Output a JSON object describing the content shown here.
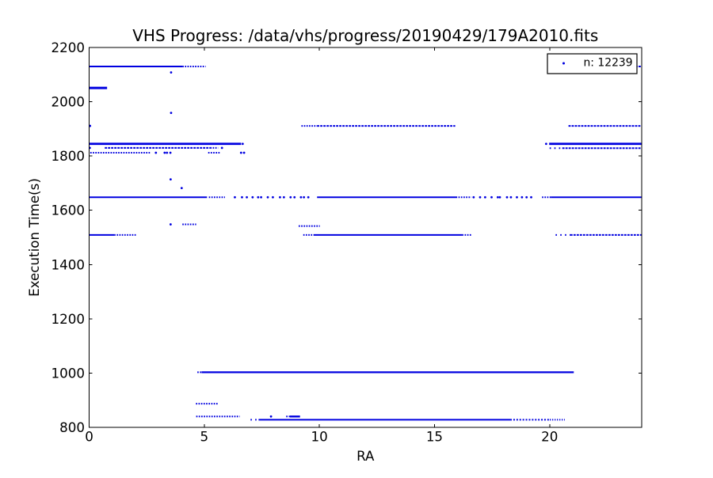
{
  "chart_data": {
    "type": "scatter",
    "title": "VHS Progress: /data/vhs/progress/20190429/179A2010.fits",
    "xlabel": "RA",
    "ylabel": "Execution Time(s)",
    "legend": {
      "label": "n: 12239",
      "position": "upper right"
    },
    "xlim": [
      0,
      24
    ],
    "ylim": [
      800,
      2200
    ],
    "xticks": [
      0,
      5,
      10,
      15,
      20
    ],
    "yticks": [
      800,
      1000,
      1200,
      1400,
      1600,
      1800,
      2000,
      2200
    ],
    "grid": false,
    "marker_color": "#0000e0",
    "axis_color": "#000000",
    "background_color": "#ffffff",
    "bands": [
      {
        "y": 2130,
        "segments": [
          {
            "x0": 0,
            "x1": 4.05,
            "style": "solid"
          },
          {
            "x0": 4.05,
            "x1": 5.06,
            "style": "dotted"
          },
          {
            "x0": 23.45,
            "x1": 24,
            "style": "dense"
          }
        ]
      },
      {
        "y": 2051,
        "segments": [
          {
            "x0": 0,
            "x1": 0.78,
            "style": "solid",
            "thick": 3
          }
        ]
      },
      {
        "y": 1911,
        "segments": [
          {
            "x0": 9.22,
            "x1": 9.9,
            "style": "dotted"
          },
          {
            "x0": 9.9,
            "x1": 15.9,
            "style": "dense"
          },
          {
            "x0": 20.82,
            "x1": 24,
            "style": "dense"
          }
        ]
      },
      {
        "y": 1845,
        "segments": [
          {
            "x0": 0,
            "x1": 6.6,
            "style": "solid",
            "thick": 2.8
          },
          {
            "x0": 19.98,
            "x1": 24,
            "style": "solid",
            "thick": 2.8
          }
        ]
      },
      {
        "y": 1830,
        "segments": [
          {
            "x0": 0.68,
            "x1": 5.26,
            "style": "dense"
          },
          {
            "x0": 5.26,
            "x1": 5.6,
            "style": "dotted"
          }
        ]
      },
      {
        "y": 1829,
        "segments": [
          {
            "x0": 20.0,
            "x1": 20.55,
            "style": "sparse"
          },
          {
            "x0": 20.55,
            "x1": 24,
            "style": "dense"
          }
        ]
      },
      {
        "y": 1812,
        "segments": [
          {
            "x0": 0.05,
            "x1": 2.65,
            "style": "dotted"
          },
          {
            "x0": 5.17,
            "x1": 5.69,
            "style": "dotted"
          }
        ]
      },
      {
        "y": 1648,
        "segments": [
          {
            "x0": 0,
            "x1": 5.12,
            "style": "solid"
          },
          {
            "x0": 5.2,
            "x1": 5.9,
            "style": "dotted"
          },
          {
            "x0": 9.9,
            "x1": 15.93,
            "style": "solid"
          },
          {
            "x0": 15.93,
            "x1": 16.6,
            "style": "dotted"
          },
          {
            "x0": 19.67,
            "x1": 20.05,
            "style": "dotted"
          },
          {
            "x0": 20.05,
            "x1": 24,
            "style": "solid"
          }
        ]
      },
      {
        "y": 1548,
        "segments": [
          {
            "x0": 4.05,
            "x1": 4.65,
            "style": "dotted"
          }
        ]
      },
      {
        "y": 1542,
        "segments": [
          {
            "x0": 9.1,
            "x1": 10.02,
            "style": "dotted"
          }
        ]
      },
      {
        "y": 1509,
        "segments": [
          {
            "x0": 0,
            "x1": 1.09,
            "style": "solid"
          },
          {
            "x0": 1.09,
            "x1": 2.05,
            "style": "dotted"
          },
          {
            "x0": 9.3,
            "x1": 9.75,
            "style": "dotted"
          },
          {
            "x0": 9.75,
            "x1": 16.2,
            "style": "solid"
          },
          {
            "x0": 16.2,
            "x1": 16.6,
            "style": "dotted"
          },
          {
            "x0": 20.26,
            "x1": 20.9,
            "style": "sparse"
          },
          {
            "x0": 20.9,
            "x1": 24,
            "style": "dense"
          }
        ]
      },
      {
        "y": 1003,
        "segments": [
          {
            "x0": 4.7,
            "x1": 4.88,
            "style": "dotted"
          },
          {
            "x0": 4.88,
            "x1": 21.05,
            "style": "solid",
            "thick": 2.2
          }
        ]
      },
      {
        "y": 887,
        "segments": [
          {
            "x0": 4.64,
            "x1": 5.61,
            "style": "dotted"
          }
        ]
      },
      {
        "y": 840,
        "segments": [
          {
            "x0": 4.65,
            "x1": 6.54,
            "style": "dotted"
          },
          {
            "x0": 8.56,
            "x1": 8.72,
            "style": "dotted"
          },
          {
            "x0": 8.72,
            "x1": 9.16,
            "style": "solid",
            "thick": 2.4
          }
        ]
      },
      {
        "y": 828,
        "segments": [
          {
            "x0": 7.01,
            "x1": 7.32,
            "style": "sparse"
          },
          {
            "x0": 7.36,
            "x1": 18.29,
            "style": "solid"
          },
          {
            "x0": 18.29,
            "x1": 20.01,
            "style": "spaced"
          },
          {
            "x0": 20.01,
            "x1": 20.66,
            "style": "fine"
          }
        ]
      }
    ],
    "points": [
      [
        3.56,
        2108
      ],
      [
        3.56,
        1959
      ],
      [
        0.04,
        1911
      ],
      [
        6.67,
        1845
      ],
      [
        19.85,
        1845
      ],
      [
        0.03,
        1830
      ],
      [
        5.77,
        1830
      ],
      [
        2.9,
        1812
      ],
      [
        3.28,
        1812
      ],
      [
        3.38,
        1812
      ],
      [
        3.53,
        1812
      ],
      [
        6.6,
        1812
      ],
      [
        6.73,
        1812
      ],
      [
        3.54,
        1714
      ],
      [
        4.02,
        1682
      ],
      [
        6.33,
        1648
      ],
      [
        6.64,
        1648
      ],
      [
        6.85,
        1648
      ],
      [
        7.1,
        1648
      ],
      [
        7.34,
        1648
      ],
      [
        7.47,
        1648
      ],
      [
        7.76,
        1648
      ],
      [
        7.98,
        1648
      ],
      [
        8.29,
        1648
      ],
      [
        8.46,
        1648
      ],
      [
        8.75,
        1648
      ],
      [
        8.92,
        1648
      ],
      [
        9.2,
        1648
      ],
      [
        9.33,
        1648
      ],
      [
        9.52,
        1648
      ],
      [
        16.7,
        1648
      ],
      [
        16.98,
        1648
      ],
      [
        17.2,
        1648
      ],
      [
        17.48,
        1648
      ],
      [
        17.75,
        1648
      ],
      [
        17.84,
        1648
      ],
      [
        18.15,
        1648
      ],
      [
        18.32,
        1648
      ],
      [
        18.58,
        1648
      ],
      [
        18.8,
        1648
      ],
      [
        19.0,
        1648
      ],
      [
        19.2,
        1648
      ],
      [
        3.54,
        1548
      ],
      [
        7.9,
        840
      ]
    ]
  }
}
